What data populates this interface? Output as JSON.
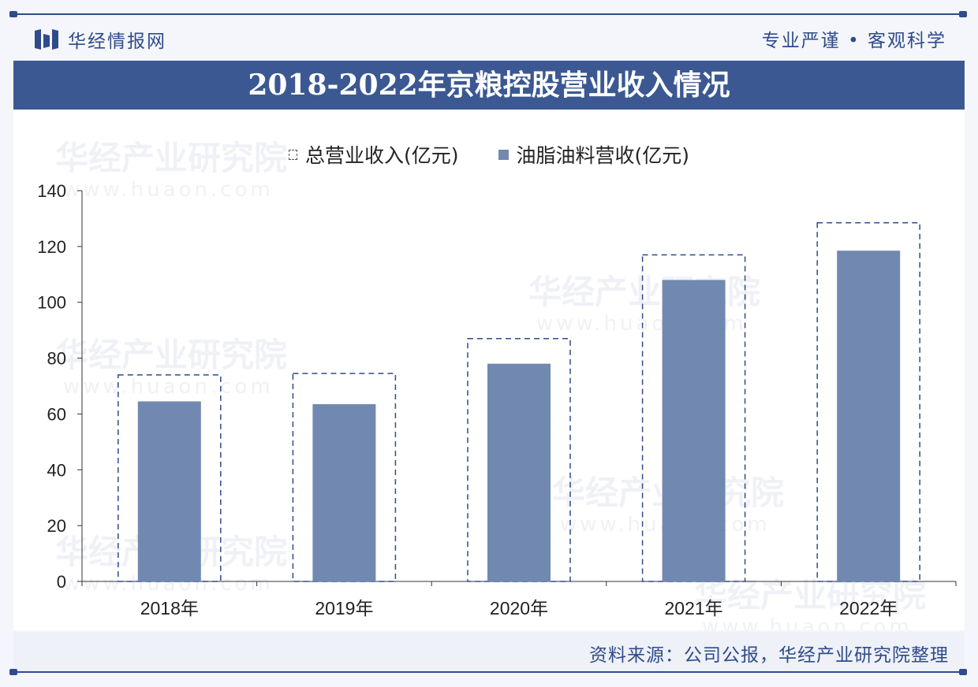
{
  "header": {
    "brand_name": "华经情报网",
    "slogan": "专业严谨 • 客观科学"
  },
  "watermark": {
    "text": "华经产业研究院",
    "url": "www.huaon.com"
  },
  "colors": {
    "primary": "#3b5892",
    "bar": "#7189b0",
    "dashed": "#2f4b8a"
  },
  "chart_data": {
    "type": "bar",
    "title": "2018-2022年京粮控股营业收入情况",
    "categories": [
      "2018年",
      "2019年",
      "2020年",
      "2021年",
      "2022年"
    ],
    "series": [
      {
        "name": "总营业收入(亿元)",
        "style": "dashed-outline",
        "values": [
          74,
          74.5,
          87,
          117,
          128.5
        ]
      },
      {
        "name": "油脂油料营收(亿元)",
        "style": "solid",
        "values": [
          64.5,
          63.5,
          78,
          108,
          118.5
        ]
      }
    ],
    "ylim": [
      0,
      140
    ],
    "yticks": [
      0,
      20,
      40,
      60,
      80,
      100,
      120,
      140
    ],
    "legend_position": "top-center",
    "grid": false
  },
  "footer": {
    "source": "资料来源：公司公报，华经产业研究院整理"
  }
}
